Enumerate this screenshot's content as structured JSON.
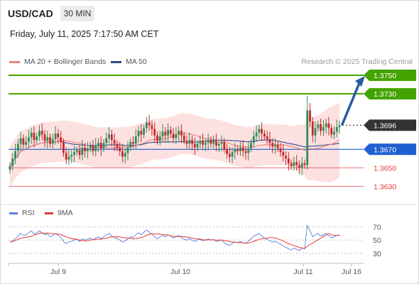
{
  "header": {
    "symbol": "USD/CAD",
    "timeframe": "30 MIN",
    "datetime": "Friday, July 11, 2025 7:17:50 AM CET"
  },
  "legend": {
    "ma20": "MA 20 + Bollinger Bands",
    "ma50": "MA 50",
    "credit": "Research © 2025 Trading Central"
  },
  "rsi_legend": {
    "rsi": "RSI",
    "ma": "9MA"
  },
  "colors": {
    "up": "#2e8b57",
    "down": "#c62828",
    "resistance": "#43a300",
    "pivot": "#1f5fd1",
    "support": "#e57373",
    "ma20": "#f08080",
    "ma50": "#2e4a8f",
    "band": "#fde0e0",
    "arrow": "#2b5aa3",
    "rsi": "#5a7fe0",
    "rsi_ma": "#e53935",
    "current": "#333333"
  },
  "chart_data": [
    {
      "type": "candlestick",
      "title": "USD/CAD",
      "timeframe": "30 MIN",
      "x_ticks": [
        "Jul 9",
        "Jul 10",
        "Jul 11",
        "Jul 16"
      ],
      "ylim": [
        1.3615,
        1.376
      ],
      "current_price": "1.3696",
      "levels": [
        {
          "label": "1.3750",
          "value": 1.375,
          "kind": "resistance"
        },
        {
          "label": "1.3730",
          "value": 1.373,
          "kind": "resistance"
        },
        {
          "label": "1.3670",
          "value": 1.367,
          "kind": "pivot"
        },
        {
          "label": "1.3650",
          "value": 1.365,
          "kind": "support"
        },
        {
          "label": "1.3630",
          "value": 1.363,
          "kind": "support"
        }
      ],
      "close": [
        1.3652,
        1.366,
        1.3668,
        1.3676,
        1.3682,
        1.3675,
        1.3678,
        1.3683,
        1.3688,
        1.368,
        1.3684,
        1.369,
        1.3686,
        1.3679,
        1.3683,
        1.3676,
        1.3681,
        1.3687,
        1.3683,
        1.3678,
        1.3666,
        1.3659,
        1.3662,
        1.3664,
        1.3667,
        1.3669,
        1.3664,
        1.3672,
        1.3668,
        1.3671,
        1.3674,
        1.3668,
        1.3674,
        1.3677,
        1.3671,
        1.3677,
        1.3682,
        1.3686,
        1.368,
        1.3676,
        1.3672,
        1.3668,
        1.3662,
        1.3666,
        1.3672,
        1.3678,
        1.3676,
        1.3684,
        1.369,
        1.3686,
        1.3693,
        1.3699,
        1.3696,
        1.3692,
        1.3685,
        1.3679,
        1.3684,
        1.3689,
        1.3685,
        1.3691,
        1.3687,
        1.3682,
        1.3686,
        1.369,
        1.3685,
        1.3679,
        1.3676,
        1.368,
        1.3676,
        1.3672,
        1.3676,
        1.3679,
        1.3675,
        1.3677,
        1.368,
        1.3676,
        1.3679,
        1.3674,
        1.3676,
        1.3678,
        1.367,
        1.3665,
        1.3662,
        1.3667,
        1.367,
        1.3668,
        1.3672,
        1.3668,
        1.3666,
        1.3671,
        1.3677,
        1.3684,
        1.3688,
        1.3692,
        1.3687,
        1.3684,
        1.3681,
        1.3677,
        1.3673,
        1.3675,
        1.3671,
        1.3667,
        1.3663,
        1.366,
        1.3655,
        1.3652,
        1.3656,
        1.3653,
        1.365,
        1.3655,
        1.3653,
        1.3712,
        1.37,
        1.3685,
        1.3693,
        1.3697,
        1.369,
        1.3694,
        1.3698,
        1.3693,
        1.3686,
        1.3689,
        1.3694,
        1.3696
      ],
      "rsi": {
        "levels": [
          70,
          50,
          30
        ],
        "ylim": [
          18,
          78
        ],
        "values": [
          47,
          49,
          52,
          56,
          60,
          57,
          58,
          61,
          64,
          59,
          61,
          64,
          61,
          58,
          59,
          55,
          57,
          60,
          57,
          54,
          48,
          45,
          47,
          48,
          50,
          51,
          48,
          52,
          50,
          51,
          53,
          50,
          53,
          55,
          52,
          55,
          58,
          60,
          56,
          54,
          52,
          50,
          47,
          49,
          52,
          55,
          54,
          58,
          61,
          58,
          62,
          65,
          62,
          59,
          55,
          52,
          55,
          57,
          55,
          58,
          56,
          53,
          55,
          57,
          54,
          51,
          50,
          52,
          50,
          48,
          50,
          51,
          49,
          50,
          52,
          50,
          51,
          48,
          49,
          50,
          46,
          43,
          42,
          45,
          47,
          46,
          48,
          46,
          45,
          48,
          52,
          56,
          58,
          60,
          56,
          53,
          51,
          49,
          47,
          48,
          46,
          44,
          41,
          39,
          37,
          35,
          38,
          36,
          34,
          38,
          37,
          72,
          64,
          55,
          58,
          60,
          56,
          58,
          60,
          57,
          53,
          55,
          57,
          58
        ]
      }
    }
  ]
}
